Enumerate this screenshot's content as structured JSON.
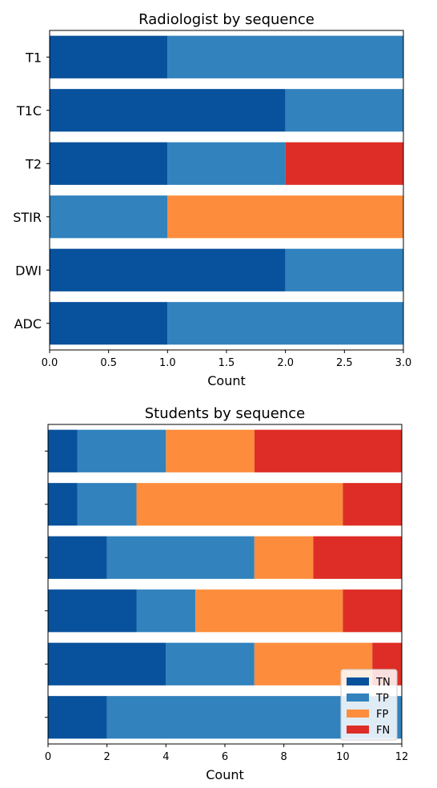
{
  "chart_data": [
    {
      "type": "bar",
      "orientation": "horizontal",
      "stacked": true,
      "title": "Radiologist by sequence",
      "xlabel": "Count",
      "ylabel": "",
      "xlim": [
        0,
        3
      ],
      "xticks": [
        "0.0",
        "0.5",
        "1.0",
        "1.5",
        "2.0",
        "2.5",
        "3.0"
      ],
      "xtick_values": [
        0,
        0.5,
        1,
        1.5,
        2,
        2.5,
        3
      ],
      "categories": [
        "T1",
        "T1C",
        "T2",
        "STIR",
        "DWI",
        "ADC"
      ],
      "series": [
        {
          "name": "TN",
          "color": "#08519c",
          "values": [
            1,
            2,
            1,
            0,
            2,
            1
          ]
        },
        {
          "name": "TP",
          "color": "#3182bd",
          "values": [
            2,
            1,
            1,
            1,
            1,
            2
          ]
        },
        {
          "name": "FP",
          "color": "#fd8d3c",
          "values": [
            0,
            0,
            0,
            2,
            0,
            0
          ]
        },
        {
          "name": "FN",
          "color": "#de2d26",
          "values": [
            0,
            0,
            1,
            0,
            0,
            0
          ]
        }
      ],
      "grid": false,
      "legend": null
    },
    {
      "type": "bar",
      "orientation": "horizontal",
      "stacked": true,
      "title": "Students by sequence",
      "xlabel": "Count",
      "ylabel": "",
      "xlim": [
        0,
        12
      ],
      "xticks": [
        "0",
        "2",
        "4",
        "6",
        "8",
        "10",
        "12"
      ],
      "xtick_values": [
        0,
        2,
        4,
        6,
        8,
        10,
        12
      ],
      "categories": [
        "",
        "",
        "",
        "",
        "",
        ""
      ],
      "series": [
        {
          "name": "TN",
          "color": "#08519c",
          "values": [
            1,
            1,
            2,
            3,
            4,
            2
          ]
        },
        {
          "name": "TP",
          "color": "#3182bd",
          "values": [
            3,
            2,
            5,
            2,
            3,
            10
          ]
        },
        {
          "name": "FP",
          "color": "#fd8d3c",
          "values": [
            3,
            7,
            2,
            5,
            4,
            0
          ]
        },
        {
          "name": "FN",
          "color": "#de2d26",
          "values": [
            5,
            2,
            3,
            2,
            1,
            0
          ]
        }
      ],
      "grid": false,
      "legend": "lower-right"
    }
  ]
}
